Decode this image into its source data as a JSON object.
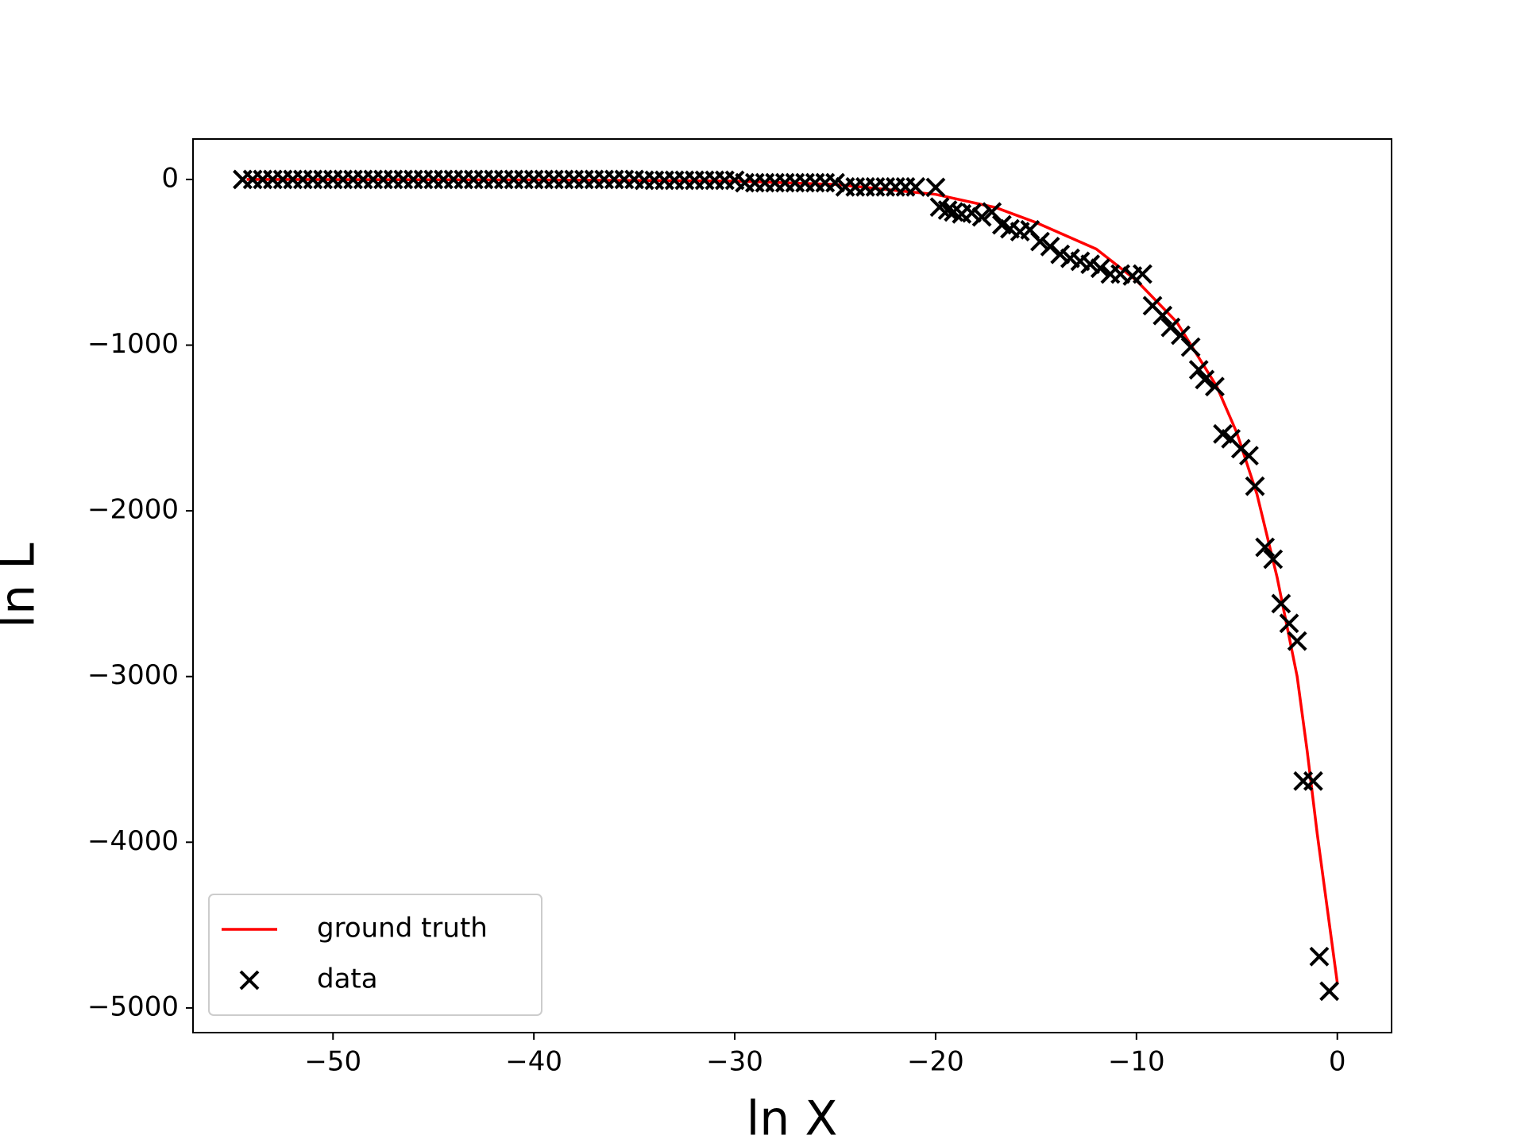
{
  "chart_data": {
    "type": "scatter",
    "xlabel": "ln X",
    "ylabel": "ln L",
    "xlim": [
      -56.97,
      2.7
    ],
    "ylim": [
      -5149,
      244
    ],
    "xticks": [
      {
        "value": -50,
        "label": "−50"
      },
      {
        "value": -40,
        "label": "−40"
      },
      {
        "value": -30,
        "label": "−30"
      },
      {
        "value": -20,
        "label": "−20"
      },
      {
        "value": -10,
        "label": "−10"
      },
      0
    ],
    "yticks": [
      0,
      {
        "value": -1000,
        "label": "−1000"
      },
      {
        "value": -2000,
        "label": "−2000"
      },
      {
        "value": -3000,
        "label": "−3000"
      },
      {
        "value": -4000,
        "label": "−4000"
      },
      {
        "value": -5000,
        "label": "−5000"
      }
    ],
    "legend": "lower left",
    "series": [
      {
        "name": "ground truth",
        "type": "line",
        "color": "#ff0000",
        "x": [
          -54.3,
          -40,
          -30,
          -25,
          -20,
          -17,
          -15,
          -12,
          -10,
          -8,
          -6,
          -5,
          -4,
          -3,
          -2,
          -1.5,
          -1,
          -0.5,
          0
        ],
        "values": [
          0,
          -3,
          -10,
          -30,
          -90,
          -170,
          -260,
          -420,
          -610,
          -860,
          -1250,
          -1530,
          -1900,
          -2400,
          -3000,
          -3450,
          -3950,
          -4400,
          -4850
        ]
      },
      {
        "name": "data",
        "type": "scatter",
        "color": "#000000",
        "x": [
          -54.5,
          -54,
          -53.5,
          -53,
          -52.5,
          -52,
          -51.5,
          -51,
          -50.5,
          -50,
          -49.5,
          -49,
          -48.5,
          -48,
          -47.5,
          -47,
          -46.5,
          -46,
          -45.5,
          -45,
          -44.5,
          -44,
          -43.5,
          -43,
          -42.5,
          -42,
          -41.5,
          -41,
          -40.5,
          -40,
          -39.5,
          -39,
          -38.5,
          -38,
          -37.5,
          -37,
          -36.5,
          -36,
          -35.5,
          -35,
          -34.5,
          -34,
          -33.5,
          -33,
          -32.5,
          -32,
          -31.5,
          -31,
          -30.5,
          -30,
          -29.5,
          -29,
          -28.5,
          -28,
          -27.5,
          -27,
          -26.5,
          -26,
          -25.5,
          -25,
          -24.5,
          -24,
          -23.5,
          -23,
          -22.5,
          -22,
          -21.5,
          -21,
          -20.0,
          -19.8,
          -19.4,
          -19.1,
          -18.7,
          -18.2,
          -17.7,
          -17.2,
          -16.7,
          -16.3,
          -15.8,
          -15.3,
          -14.8,
          -14.3,
          -13.8,
          -13.3,
          -12.8,
          -12.3,
          -11.8,
          -11.3,
          -10.8,
          -10.2,
          -9.7,
          -9.2,
          -8.7,
          -8.3,
          -7.8,
          -7.3,
          -6.9,
          -6.6,
          -6.1,
          -5.7,
          -5.3,
          -4.8,
          -4.4,
          -4.1,
          -3.6,
          -3.2,
          -2.8,
          -2.4,
          -2.0,
          -1.7,
          -1.2,
          -0.9,
          -0.4
        ],
        "values": [
          0,
          0,
          0,
          0,
          0,
          0,
          0,
          0,
          0,
          0,
          0,
          0,
          0,
          0,
          0,
          0,
          0,
          0,
          0,
          0,
          0,
          0,
          0,
          0,
          0,
          0,
          0,
          0,
          0,
          0,
          0,
          0,
          0,
          0,
          0,
          0,
          0,
          0,
          0,
          0,
          -5,
          -5,
          -5,
          -5,
          -5,
          -5,
          -5,
          -5,
          -5,
          -5,
          -20,
          -20,
          -20,
          -20,
          -20,
          -20,
          -20,
          -20,
          -20,
          -20,
          -45,
          -45,
          -45,
          -45,
          -45,
          -45,
          -45,
          -45,
          -48,
          -167,
          -185,
          -196,
          -208,
          -202,
          -226,
          -196,
          -274,
          -298,
          -315,
          -304,
          -375,
          -405,
          -452,
          -476,
          -494,
          -512,
          -536,
          -571,
          -571,
          -583,
          -571,
          -762,
          -821,
          -893,
          -940,
          -1012,
          -1149,
          -1208,
          -1250,
          -1536,
          -1565,
          -1625,
          -1667,
          -1851,
          -2220,
          -2292,
          -2560,
          -2679,
          -2786,
          -3631,
          -3631,
          -4690,
          -4899
        ]
      }
    ]
  }
}
